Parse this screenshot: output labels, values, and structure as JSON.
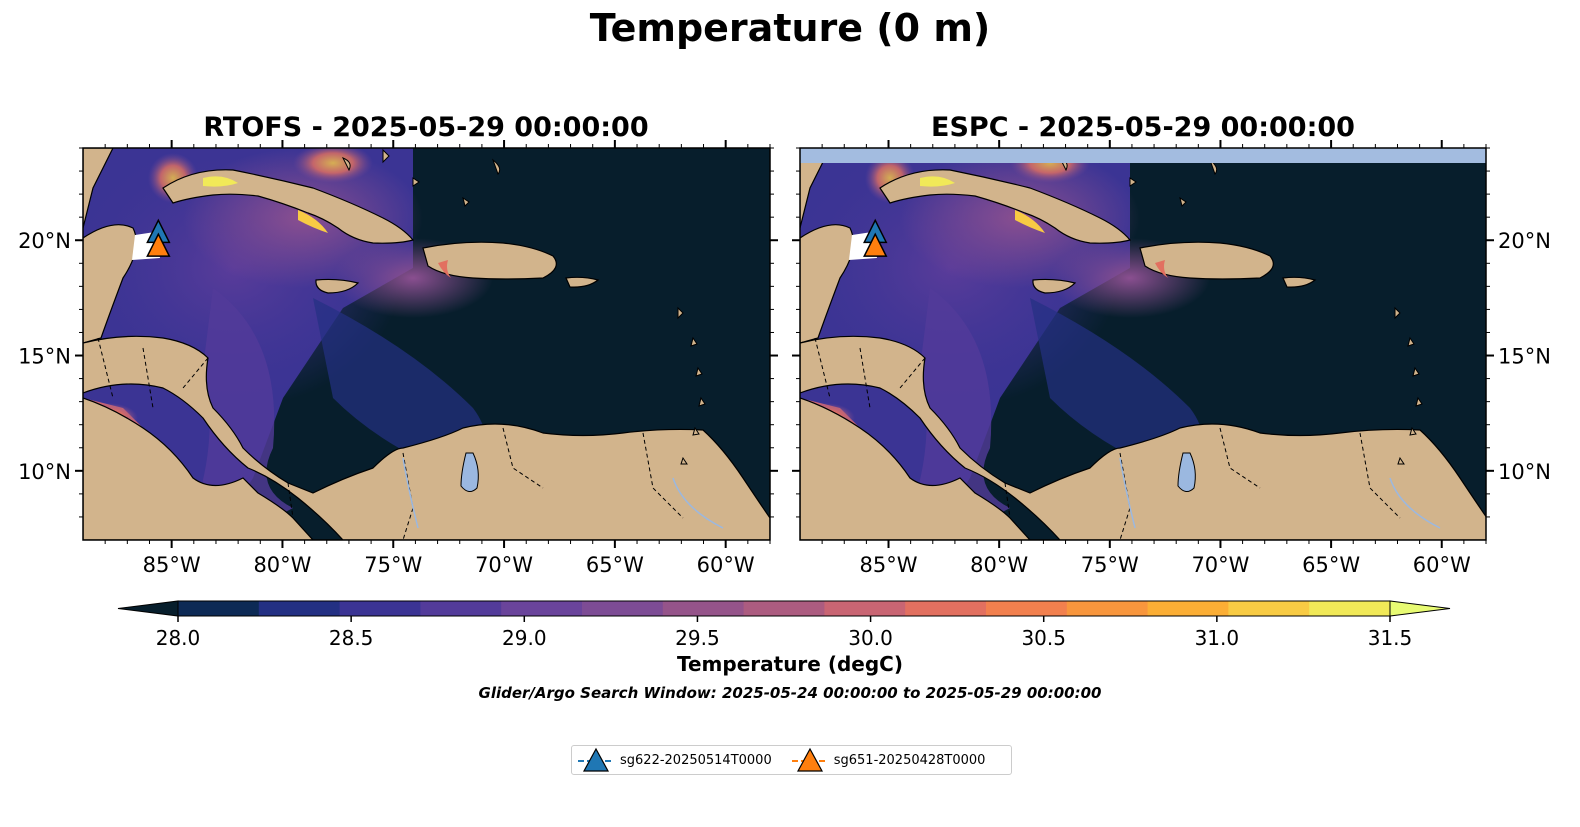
{
  "figure": {
    "suptitle": "Temperature (0 m)",
    "panels": [
      {
        "id": "rtofs",
        "title": "RTOFS - 2025-05-29 00:00:00"
      },
      {
        "id": "espc",
        "title": "ESPC - 2025-05-29 00:00:00"
      }
    ],
    "lon_ticks": [
      "85°W",
      "80°W",
      "75°W",
      "70°W",
      "65°W",
      "60°W"
    ],
    "lat_ticks": [
      "20°N",
      "15°N",
      "10°N"
    ],
    "extent": {
      "lon": [
        -89,
        -58
      ],
      "lat": [
        7,
        24
      ]
    },
    "colorbar": {
      "label": "Temperature (degC)",
      "ticks": [
        "28.0",
        "28.5",
        "29.0",
        "29.5",
        "30.0",
        "30.5",
        "31.0",
        "31.5"
      ],
      "range": [
        28.0,
        31.5
      ],
      "extend": "both",
      "colors": [
        "#071e2c",
        "#0d2a55",
        "#233083",
        "#3b3494",
        "#533b9a",
        "#6a449b",
        "#7d4c95",
        "#95548a",
        "#ac5c80",
        "#c96573",
        "#e27060",
        "#f2804e",
        "#f8963d",
        "#fbae35",
        "#f8cb44",
        "#f1e958",
        "#e8fb73"
      ]
    },
    "search_window": "Glider/Argo Search Window: 2025-05-24 00:00:00 to 2025-05-29 00:00:00",
    "legend": [
      {
        "label": "sg622-20250514T0000",
        "color": "#1f77b4",
        "lon": -85.6,
        "lat": 20.3
      },
      {
        "label": "sg651-20250428T0000",
        "color": "#ff7f0e",
        "lon": -85.6,
        "lat": 19.7
      }
    ],
    "colors": {
      "land": "#d2b48c",
      "lake": "#9bb8e0",
      "coast": "#000000",
      "no_data": "#a3bce0"
    }
  }
}
